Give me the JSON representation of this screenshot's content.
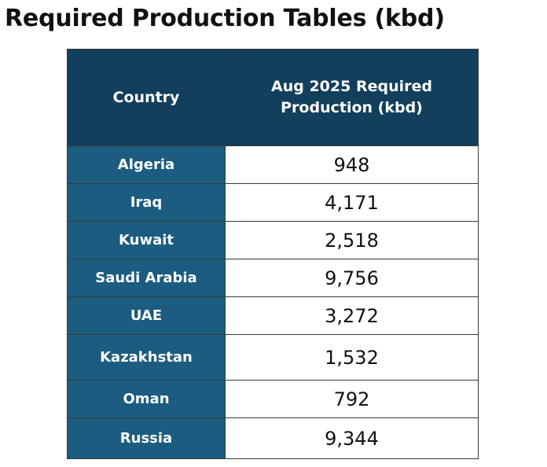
{
  "page": {
    "title": "Required Production Tables (kbd)"
  },
  "chart_data": {
    "type": "table",
    "title": "Required Production Tables (kbd)",
    "columns": [
      "Country",
      "Aug 2025 Required Production (kbd)"
    ],
    "rows": [
      {
        "country": "Algeria",
        "value": "948"
      },
      {
        "country": "Iraq",
        "value": "4,171"
      },
      {
        "country": "Kuwait",
        "value": "2,518"
      },
      {
        "country": "Saudi Arabia",
        "value": "9,756"
      },
      {
        "country": "UAE",
        "value": "3,272"
      },
      {
        "country": "Kazakhstan",
        "value": "1,532"
      },
      {
        "country": "Oman",
        "value": "792"
      },
      {
        "country": "Russia",
        "value": "9,344"
      }
    ]
  },
  "colors": {
    "header_bg": "#123f5b",
    "country_bg": "#1b5c80",
    "value_bg": "#ffffff",
    "border": "#3a3a3a"
  }
}
